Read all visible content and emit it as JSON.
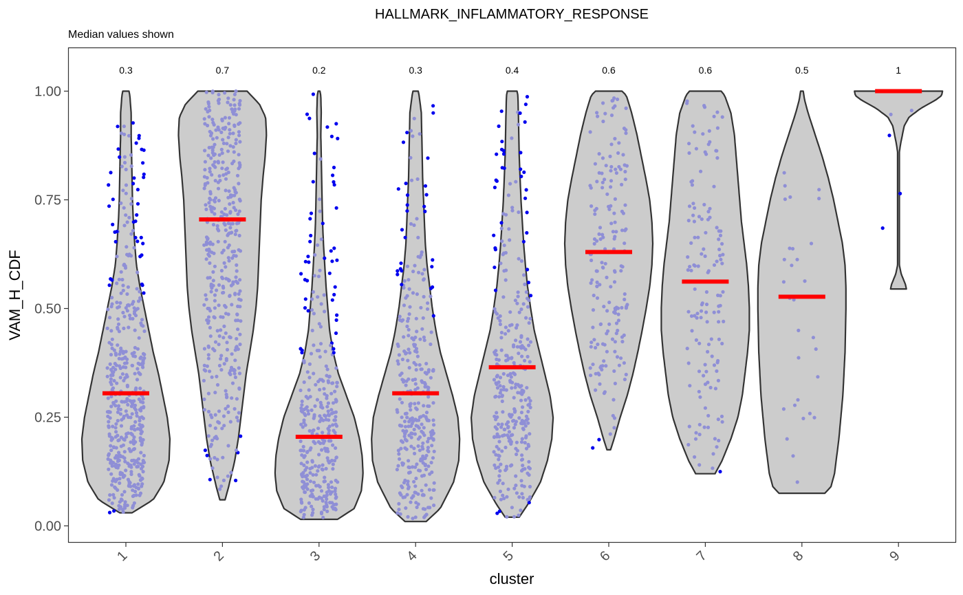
{
  "chart_data": {
    "type": "violin",
    "title": "HALLMARK_INFLAMMATORY_RESPONSE",
    "subtitle": "Median values shown",
    "xlabel": "cluster",
    "ylabel": "VAM_H_CDF",
    "categories": [
      "1",
      "2",
      "3",
      "4",
      "5",
      "6",
      "7",
      "8",
      "9"
    ],
    "ylim": [
      -0.04,
      1.1
    ],
    "yticks": [
      0.0,
      0.25,
      0.5,
      0.75,
      1.0
    ],
    "ytick_labels": [
      "0.00",
      "0.25",
      "0.50",
      "0.75",
      "1.00"
    ],
    "grid": false,
    "legend": "none",
    "median_labels": [
      "0.3",
      "0.7",
      "0.2",
      "0.3",
      "0.4",
      "0.6",
      "0.6",
      "0.5",
      "1"
    ],
    "medians": [
      0.305,
      0.705,
      0.205,
      0.305,
      0.365,
      0.63,
      0.562,
      0.527,
      1.0
    ],
    "violins": [
      {
        "cluster": "1",
        "min": 0.03,
        "max": 1.0,
        "profile": [
          [
            0.03,
            0.14
          ],
          [
            0.06,
            0.62
          ],
          [
            0.1,
            0.86
          ],
          [
            0.15,
            0.98
          ],
          [
            0.2,
            1.0
          ],
          [
            0.25,
            0.94
          ],
          [
            0.3,
            0.84
          ],
          [
            0.35,
            0.74
          ],
          [
            0.4,
            0.62
          ],
          [
            0.45,
            0.52
          ],
          [
            0.5,
            0.42
          ],
          [
            0.55,
            0.32
          ],
          [
            0.6,
            0.24
          ],
          [
            0.65,
            0.2
          ],
          [
            0.7,
            0.17
          ],
          [
            0.75,
            0.15
          ],
          [
            0.8,
            0.14
          ],
          [
            0.85,
            0.13
          ],
          [
            0.9,
            0.12
          ],
          [
            0.95,
            0.12
          ],
          [
            0.99,
            0.09
          ],
          [
            1.0,
            0.07
          ]
        ]
      },
      {
        "cluster": "2",
        "min": 0.06,
        "max": 1.0,
        "profile": [
          [
            0.06,
            0.06
          ],
          [
            0.09,
            0.14
          ],
          [
            0.15,
            0.28
          ],
          [
            0.2,
            0.36
          ],
          [
            0.25,
            0.42
          ],
          [
            0.3,
            0.48
          ],
          [
            0.35,
            0.54
          ],
          [
            0.4,
            0.62
          ],
          [
            0.45,
            0.7
          ],
          [
            0.5,
            0.76
          ],
          [
            0.55,
            0.8
          ],
          [
            0.6,
            0.82
          ],
          [
            0.65,
            0.84
          ],
          [
            0.7,
            0.86
          ],
          [
            0.75,
            0.88
          ],
          [
            0.8,
            0.92
          ],
          [
            0.85,
            0.97
          ],
          [
            0.9,
            1.0
          ],
          [
            0.94,
            0.98
          ],
          [
            0.97,
            0.84
          ],
          [
            1.0,
            0.56
          ]
        ]
      },
      {
        "cluster": "3",
        "min": 0.015,
        "max": 1.0,
        "profile": [
          [
            0.015,
            0.42
          ],
          [
            0.04,
            0.8
          ],
          [
            0.08,
            0.96
          ],
          [
            0.12,
            1.0
          ],
          [
            0.16,
            0.98
          ],
          [
            0.2,
            0.92
          ],
          [
            0.25,
            0.8
          ],
          [
            0.3,
            0.62
          ],
          [
            0.35,
            0.44
          ],
          [
            0.4,
            0.32
          ],
          [
            0.45,
            0.24
          ],
          [
            0.5,
            0.2
          ],
          [
            0.55,
            0.16
          ],
          [
            0.6,
            0.13
          ],
          [
            0.65,
            0.1
          ],
          [
            0.7,
            0.08
          ],
          [
            0.75,
            0.07
          ],
          [
            0.8,
            0.06
          ],
          [
            0.85,
            0.05
          ],
          [
            0.9,
            0.04
          ],
          [
            0.95,
            0.05
          ],
          [
            0.99,
            0.04
          ],
          [
            1.0,
            0.02
          ]
        ]
      },
      {
        "cluster": "4",
        "min": 0.01,
        "max": 1.0,
        "profile": [
          [
            0.01,
            0.24
          ],
          [
            0.04,
            0.56
          ],
          [
            0.1,
            0.86
          ],
          [
            0.15,
            0.98
          ],
          [
            0.2,
            1.0
          ],
          [
            0.25,
            0.96
          ],
          [
            0.3,
            0.84
          ],
          [
            0.35,
            0.7
          ],
          [
            0.4,
            0.56
          ],
          [
            0.45,
            0.46
          ],
          [
            0.5,
            0.38
          ],
          [
            0.55,
            0.32
          ],
          [
            0.6,
            0.26
          ],
          [
            0.65,
            0.22
          ],
          [
            0.7,
            0.2
          ],
          [
            0.75,
            0.18
          ],
          [
            0.8,
            0.16
          ],
          [
            0.85,
            0.15
          ],
          [
            0.9,
            0.14
          ],
          [
            0.95,
            0.13
          ],
          [
            0.99,
            0.08
          ],
          [
            1.0,
            0.06
          ]
        ]
      },
      {
        "cluster": "5",
        "min": 0.02,
        "max": 1.0,
        "profile": [
          [
            0.02,
            0.16
          ],
          [
            0.05,
            0.36
          ],
          [
            0.1,
            0.64
          ],
          [
            0.15,
            0.8
          ],
          [
            0.2,
            0.9
          ],
          [
            0.25,
            0.93
          ],
          [
            0.3,
            0.86
          ],
          [
            0.35,
            0.74
          ],
          [
            0.4,
            0.62
          ],
          [
            0.45,
            0.5
          ],
          [
            0.5,
            0.42
          ],
          [
            0.55,
            0.35
          ],
          [
            0.6,
            0.3
          ],
          [
            0.65,
            0.26
          ],
          [
            0.7,
            0.23
          ],
          [
            0.75,
            0.2
          ],
          [
            0.8,
            0.18
          ],
          [
            0.85,
            0.16
          ],
          [
            0.9,
            0.15
          ],
          [
            0.95,
            0.14
          ],
          [
            0.99,
            0.13
          ],
          [
            1.0,
            0.11
          ]
        ]
      },
      {
        "cluster": "6",
        "min": 0.175,
        "max": 1.0,
        "profile": [
          [
            0.175,
            0.04
          ],
          [
            0.2,
            0.12
          ],
          [
            0.25,
            0.26
          ],
          [
            0.3,
            0.42
          ],
          [
            0.35,
            0.55
          ],
          [
            0.4,
            0.66
          ],
          [
            0.45,
            0.76
          ],
          [
            0.5,
            0.85
          ],
          [
            0.55,
            0.93
          ],
          [
            0.6,
            0.98
          ],
          [
            0.65,
            1.0
          ],
          [
            0.7,
            0.98
          ],
          [
            0.75,
            0.93
          ],
          [
            0.8,
            0.84
          ],
          [
            0.85,
            0.74
          ],
          [
            0.9,
            0.64
          ],
          [
            0.95,
            0.52
          ],
          [
            0.99,
            0.4
          ],
          [
            1.0,
            0.3
          ]
        ]
      },
      {
        "cluster": "7",
        "min": 0.12,
        "max": 1.0,
        "profile": [
          [
            0.12,
            0.22
          ],
          [
            0.15,
            0.38
          ],
          [
            0.2,
            0.58
          ],
          [
            0.25,
            0.74
          ],
          [
            0.3,
            0.84
          ],
          [
            0.35,
            0.9
          ],
          [
            0.4,
            0.96
          ],
          [
            0.45,
            1.0
          ],
          [
            0.5,
            1.0
          ],
          [
            0.55,
            0.98
          ],
          [
            0.6,
            0.94
          ],
          [
            0.65,
            0.88
          ],
          [
            0.7,
            0.82
          ],
          [
            0.75,
            0.78
          ],
          [
            0.8,
            0.74
          ],
          [
            0.85,
            0.7
          ],
          [
            0.9,
            0.66
          ],
          [
            0.95,
            0.58
          ],
          [
            0.99,
            0.44
          ],
          [
            1.0,
            0.36
          ]
        ]
      },
      {
        "cluster": "8",
        "min": 0.075,
        "max": 1.0,
        "profile": [
          [
            0.075,
            0.52
          ],
          [
            0.09,
            0.66
          ],
          [
            0.12,
            0.74
          ],
          [
            0.2,
            0.84
          ],
          [
            0.3,
            0.93
          ],
          [
            0.4,
            0.98
          ],
          [
            0.5,
            1.0
          ],
          [
            0.55,
            1.0
          ],
          [
            0.6,
            0.98
          ],
          [
            0.65,
            0.92
          ],
          [
            0.7,
            0.82
          ],
          [
            0.75,
            0.72
          ],
          [
            0.8,
            0.6
          ],
          [
            0.85,
            0.46
          ],
          [
            0.9,
            0.3
          ],
          [
            0.95,
            0.14
          ],
          [
            0.98,
            0.06
          ],
          [
            1.0,
            0.03
          ]
        ]
      },
      {
        "cluster": "9",
        "min": 0.545,
        "max": 1.0,
        "profile": [
          [
            0.545,
            0.18
          ],
          [
            0.555,
            0.16
          ],
          [
            0.58,
            0.06
          ],
          [
            0.6,
            0.02
          ],
          [
            0.65,
            0.02
          ],
          [
            0.75,
            0.02
          ],
          [
            0.86,
            0.02
          ],
          [
            0.88,
            0.05
          ],
          [
            0.9,
            0.09
          ],
          [
            0.92,
            0.13
          ],
          [
            0.94,
            0.24
          ],
          [
            0.96,
            0.5
          ],
          [
            0.98,
            0.85
          ],
          [
            0.99,
            0.98
          ],
          [
            1.0,
            1.0
          ]
        ]
      }
    ],
    "point_counts": [
      480,
      430,
      340,
      340,
      330,
      180,
      140,
      30,
      5
    ]
  },
  "colors": {
    "violin_fill": "#cccccc",
    "violin_stroke": "#333333",
    "point_color": "#8f8fd6",
    "outlier_color": "#0000ee",
    "median_color": "#ff0000",
    "panel_border": "#333333"
  }
}
